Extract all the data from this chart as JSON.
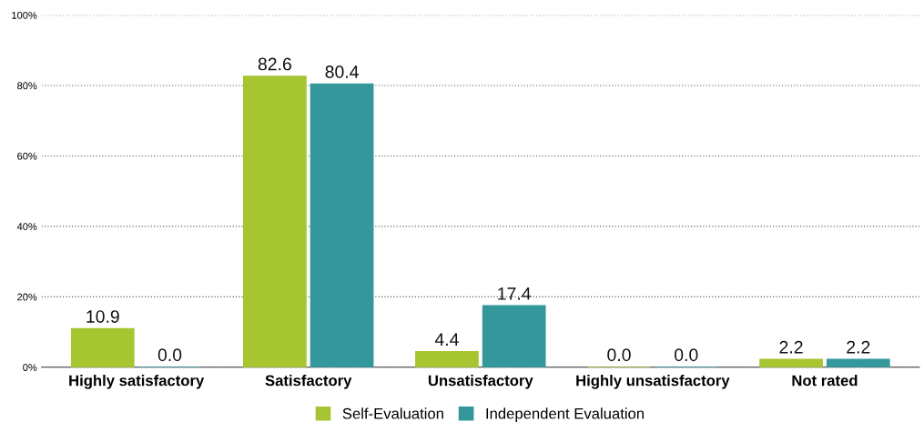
{
  "chart_data": {
    "type": "bar",
    "categories": [
      "Highly satisfactory",
      "Satisfactory",
      "Unsatisfactory",
      "Highly unsatisfactory",
      "Not rated"
    ],
    "series": [
      {
        "name": "Self-Evaluation",
        "color": "#a6c530",
        "values": [
          10.9,
          82.6,
          4.4,
          0,
          2.2
        ],
        "value_labels": [
          "10.9",
          "82.6",
          "4.4",
          "0.0",
          "2.2"
        ]
      },
      {
        "name": "Independent Evaluation",
        "color": "#33979b",
        "values": [
          0,
          80.4,
          17.4,
          0,
          2.2
        ],
        "value_labels": [
          "0.0",
          "80.4",
          "17.4",
          "0.0",
          "2.2"
        ]
      }
    ],
    "ylim": [
      0,
      100
    ],
    "yticks": [
      {
        "value": 0,
        "label": "0%"
      },
      {
        "value": 20,
        "label": "20%"
      },
      {
        "value": 40,
        "label": "40%"
      },
      {
        "value": 60,
        "label": "60%"
      },
      {
        "value": 80,
        "label": "80%"
      },
      {
        "value": 100,
        "label": "100%"
      }
    ],
    "grid": "y",
    "legend": "bottom"
  }
}
